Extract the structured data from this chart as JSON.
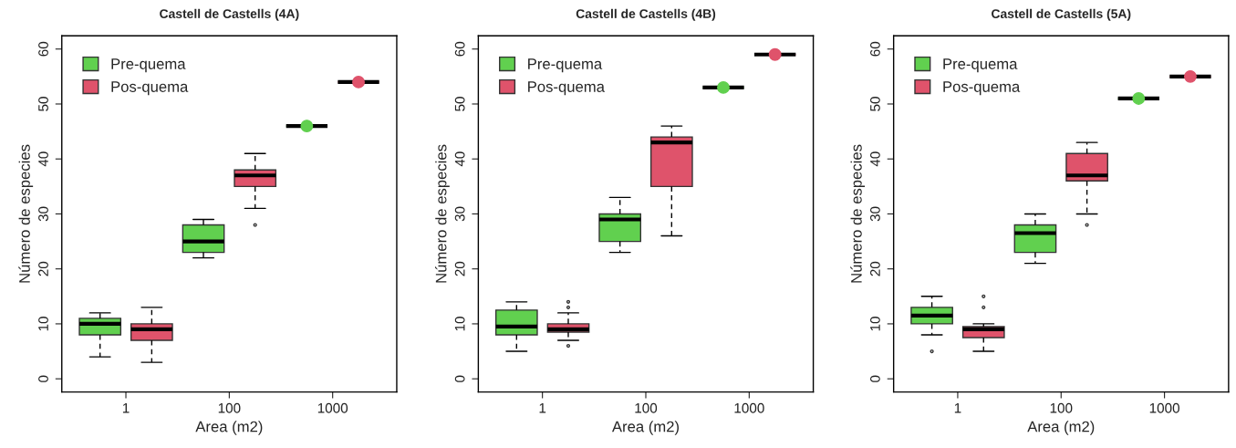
{
  "chart_data": [
    {
      "type": "box",
      "title": "Castell de Castells (4A)",
      "xlabel": "Area (m2)",
      "ylabel": "Número de especies",
      "categories": [
        "1",
        "100",
        "1000"
      ],
      "ylim": [
        -2.4,
        62.4
      ],
      "yticks": [
        0,
        10,
        20,
        30,
        40,
        50,
        60
      ],
      "legend": "top left",
      "grid": false,
      "series": [
        {
          "name": "Pre-quema",
          "color": "#61d04f",
          "boxes": [
            {
              "low": 4,
              "q1": 8,
              "median": 10,
              "q3": 11,
              "high": 12
            },
            {
              "low": 22,
              "q1": 23,
              "median": 25,
              "q3": 28,
              "high": 29
            },
            {
              "low": 46,
              "q1": 46,
              "median": 46,
              "q3": 46,
              "high": 46,
              "mean": 46
            }
          ]
        },
        {
          "name": "Pos-quema",
          "color": "#df536b",
          "boxes": [
            {
              "low": 3,
              "q1": 7,
              "median": 9,
              "q3": 10,
              "high": 13
            },
            {
              "low": 31,
              "q1": 35,
              "median": 37,
              "q3": 38,
              "high": 41,
              "outliers": [
                28
              ]
            },
            {
              "low": 54,
              "q1": 54,
              "median": 54,
              "q3": 54,
              "high": 54,
              "mean": 54
            }
          ]
        }
      ]
    },
    {
      "type": "box",
      "title": "Castell de Castells (4B)",
      "xlabel": "Area (m2)",
      "ylabel": "Número de especies",
      "categories": [
        "1",
        "100",
        "1000"
      ],
      "ylim": [
        -2.4,
        62.4
      ],
      "yticks": [
        0,
        10,
        20,
        30,
        40,
        50,
        60
      ],
      "legend": "top left",
      "grid": false,
      "series": [
        {
          "name": "Pre-quema",
          "color": "#61d04f",
          "boxes": [
            {
              "low": 5,
              "q1": 8,
              "median": 9.5,
              "q3": 12.5,
              "high": 14
            },
            {
              "low": 23,
              "q1": 25,
              "median": 29,
              "q3": 30,
              "high": 33
            },
            {
              "low": 53,
              "q1": 53,
              "median": 53,
              "q3": 53,
              "high": 53,
              "mean": 53
            }
          ]
        },
        {
          "name": "Pos-quema",
          "color": "#df536b",
          "boxes": [
            {
              "low": 7,
              "q1": 8.5,
              "median": 9,
              "q3": 10,
              "high": 12,
              "outliers": [
                6,
                13,
                14
              ]
            },
            {
              "low": 26,
              "q1": 35,
              "median": 43,
              "q3": 44,
              "high": 46
            },
            {
              "low": 59,
              "q1": 59,
              "median": 59,
              "q3": 59,
              "high": 59,
              "mean": 59
            }
          ]
        }
      ]
    },
    {
      "type": "box",
      "title": "Castell de Castells (5A)",
      "xlabel": "Area (m2)",
      "ylabel": "Número de especies",
      "categories": [
        "1",
        "100",
        "1000"
      ],
      "ylim": [
        -2.4,
        62.4
      ],
      "yticks": [
        0,
        10,
        20,
        30,
        40,
        50,
        60
      ],
      "legend": "top left",
      "grid": false,
      "series": [
        {
          "name": "Pre-quema",
          "color": "#61d04f",
          "boxes": [
            {
              "low": 8,
              "q1": 10,
              "median": 11.5,
              "q3": 13,
              "high": 15,
              "outliers": [
                5
              ]
            },
            {
              "low": 21,
              "q1": 23,
              "median": 26.5,
              "q3": 28,
              "high": 30
            },
            {
              "low": 51,
              "q1": 51,
              "median": 51,
              "q3": 51,
              "high": 51,
              "mean": 51
            }
          ]
        },
        {
          "name": "Pos-quema",
          "color": "#df536b",
          "boxes": [
            {
              "low": 5,
              "q1": 7.5,
              "median": 9,
              "q3": 9.5,
              "high": 10,
              "outliers": [
                13,
                15
              ]
            },
            {
              "low": 30,
              "q1": 36,
              "median": 37,
              "q3": 41,
              "high": 43,
              "outliers": [
                28
              ]
            },
            {
              "low": 55,
              "q1": 55,
              "median": 55,
              "q3": 55,
              "high": 55,
              "mean": 55
            }
          ]
        }
      ]
    }
  ]
}
